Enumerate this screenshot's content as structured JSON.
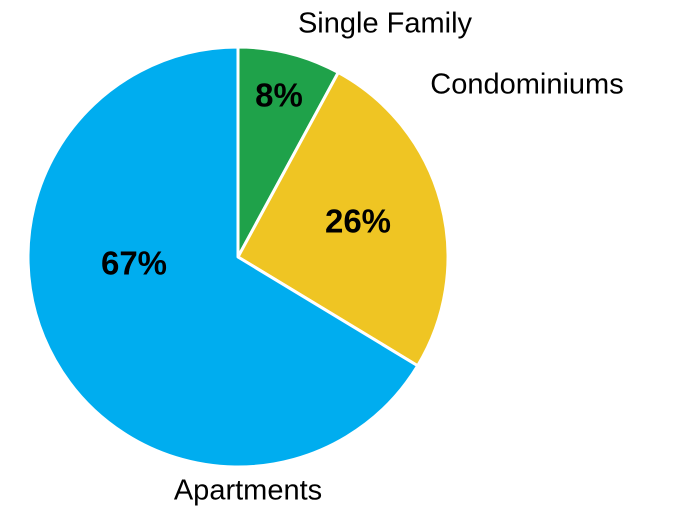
{
  "chart_data": {
    "type": "pie",
    "categories": [
      "Single Family",
      "Condominiums",
      "Apartments"
    ],
    "values": [
      8,
      26,
      67
    ],
    "value_labels": [
      "8%",
      "26%",
      "67%"
    ],
    "colors": [
      "#1fa24a",
      "#efc523",
      "#00adef"
    ]
  }
}
